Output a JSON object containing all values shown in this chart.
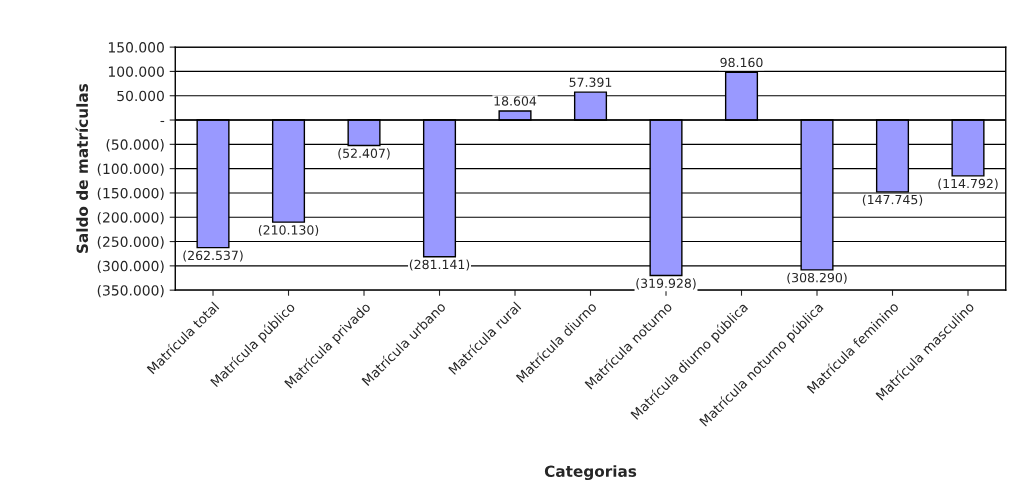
{
  "chart_data": {
    "type": "bar",
    "xlabel": "Categorias",
    "ylabel": "Saldo de matrículas",
    "categories": [
      "Matrícula total",
      "Matrícula público",
      "Matrícula privado",
      "Matrícula urbano",
      "Matrícula rural",
      "Matrícula diurno",
      "Matrícula noturno",
      "Matrícula diurno pública",
      "Matrícula noturno pública",
      "Matrícula feminino",
      "Matrícula masculino"
    ],
    "values": [
      -262537,
      -210130,
      -52407,
      -281141,
      18604,
      57391,
      -319928,
      98160,
      -308290,
      -147745,
      -114792
    ],
    "value_labels": [
      "(262.537)",
      "(210.130)",
      "(52.407)",
      "(281.141)",
      "18.604",
      "57.391",
      "(319.928)",
      "98.160",
      "(308.290)",
      "(147.745)",
      "(114.792)"
    ],
    "color": "#9999ff",
    "ylim": [
      -350000,
      150000
    ],
    "yticks": [
      {
        "value": 150000,
        "label": "150.000"
      },
      {
        "value": 100000,
        "label": "100.000"
      },
      {
        "value": 50000,
        "label": "50.000"
      },
      {
        "value": 0,
        "label": "-"
      },
      {
        "value": -50000,
        "label": "(50.000)"
      },
      {
        "value": -100000,
        "label": "(100.000)"
      },
      {
        "value": -150000,
        "label": "(150.000)"
      },
      {
        "value": -200000,
        "label": "(200.000)"
      },
      {
        "value": -250000,
        "label": "(250.000)"
      },
      {
        "value": -300000,
        "label": "(300.000)"
      },
      {
        "value": -350000,
        "label": "(350.000)"
      }
    ],
    "grid": "y"
  }
}
